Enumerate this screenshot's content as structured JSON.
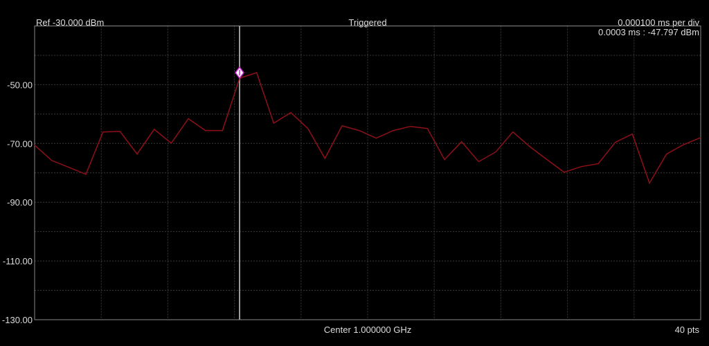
{
  "chart_data": {
    "type": "line",
    "reference_label": "Ref -30.000 dBm",
    "status": "Triggered",
    "scale_label": "0.000100 ms per div",
    "marker": {
      "index": 12,
      "label": "0.0003 ms : -47.797 dBm"
    },
    "center_label": "Center 1.000000 GHz",
    "points_label": "40 pts",
    "values": [
      -70.6,
      -75.8,
      -78.1,
      -80.5,
      -66.1,
      -65.9,
      -73.6,
      -65.2,
      -69.9,
      -61.6,
      -65.6,
      -65.6,
      -47.797,
      -45.9,
      -63.1,
      -59.5,
      -64.9,
      -75.1,
      -64.0,
      -65.6,
      -68.2,
      -65.6,
      -64.2,
      -64.9,
      -75.5,
      -69.4,
      -76.2,
      -72.9,
      -66.1,
      -71.1,
      -75.5,
      -79.8,
      -77.9,
      -76.9,
      -69.6,
      -66.8,
      -83.5,
      -73.6,
      -70.4,
      -68.0
    ],
    "color": "#8e1019",
    "ylim": [
      -130,
      -30
    ],
    "yticks": [
      {
        "value": -50,
        "label": "-50.00"
      },
      {
        "value": -70,
        "label": "-70.00"
      },
      {
        "value": -90,
        "label": "-90.00"
      },
      {
        "value": -110,
        "label": "-110.00"
      },
      {
        "value": -130,
        "label": "-130.00"
      }
    ],
    "minor_yticks": [
      -40,
      -60,
      -80,
      -100,
      -120
    ],
    "x_divisions": 10,
    "grid": true
  }
}
